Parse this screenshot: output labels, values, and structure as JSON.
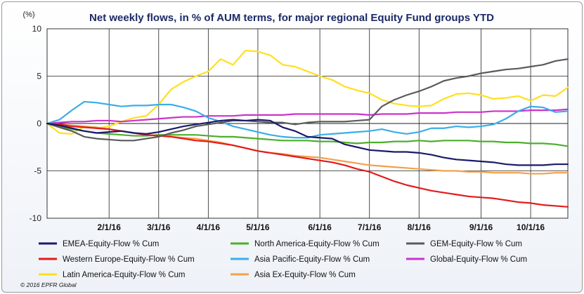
{
  "chart_data": {
    "type": "line",
    "title": "Net weekly flows, in % of AUM terms, for major regional Equity Fund groups YTD",
    "ylabel": "(%)",
    "xlabel": "",
    "ylim": [
      -10,
      10
    ],
    "yticks": [
      10,
      5,
      0,
      -5,
      -10
    ],
    "xlim": [
      0,
      42
    ],
    "x_tick_labels": [
      "2/1/16",
      "3/1/16",
      "4/1/16",
      "5/1/16",
      "6/1/16",
      "7/1/16",
      "8/1/16",
      "9/1/16",
      "10/1/16"
    ],
    "x_tick_positions": [
      5,
      9,
      13,
      17,
      22,
      26,
      30,
      35,
      39
    ],
    "grid": true,
    "legend_position": "bottom",
    "series": [
      {
        "name": "EMEA-Equity-Flow % Cum",
        "color": "#1a1a6b",
        "values": [
          0,
          -0.2,
          -0.5,
          -0.8,
          -1.0,
          -0.9,
          -0.8,
          -1.0,
          -1.1,
          -0.9,
          -0.6,
          -0.3,
          -0.1,
          0.1,
          0.3,
          0.4,
          0.3,
          0.4,
          0.3,
          -0.4,
          -0.8,
          -1.4,
          -1.5,
          -1.6,
          -2.2,
          -2.5,
          -2.8,
          -2.9,
          -3.0,
          -3.0,
          -3.1,
          -3.3,
          -3.6,
          -3.8,
          -3.9,
          -4.0,
          -4.1,
          -4.3,
          -4.4,
          -4.4,
          -4.4,
          -4.3,
          -4.3
        ]
      },
      {
        "name": "North America-Equity-Flow % Cum",
        "color": "#4caf2c",
        "values": [
          0,
          -0.3,
          -0.6,
          -0.8,
          -1.0,
          -1.1,
          -1.2,
          -1.3,
          -1.3,
          -1.2,
          -1.2,
          -1.2,
          -1.2,
          -1.3,
          -1.4,
          -1.4,
          -1.5,
          -1.6,
          -1.7,
          -1.8,
          -1.8,
          -1.8,
          -1.9,
          -1.9,
          -2.0,
          -2.1,
          -2.0,
          -2.0,
          -1.9,
          -1.9,
          -1.8,
          -1.9,
          -1.8,
          -1.8,
          -1.8,
          -1.9,
          -1.9,
          -2.0,
          -2.0,
          -2.1,
          -2.1,
          -2.2,
          -2.4
        ]
      },
      {
        "name": "GEM-Equity-Flow % Cum",
        "color": "#5a5a5a",
        "values": [
          0,
          -0.4,
          -0.8,
          -1.4,
          -1.6,
          -1.7,
          -1.8,
          -1.8,
          -1.6,
          -1.4,
          -1.0,
          -0.7,
          -0.3,
          -0.1,
          0.1,
          0.3,
          0.3,
          0.2,
          0.1,
          0.1,
          -0.1,
          0.1,
          0.2,
          0.2,
          0.2,
          0.3,
          0.4,
          1.8,
          2.5,
          3.0,
          3.4,
          3.9,
          4.5,
          4.8,
          5.0,
          5.3,
          5.5,
          5.7,
          5.8,
          6.0,
          6.2,
          6.6,
          6.8
        ]
      },
      {
        "name": "Western Europe-Equity-Flow % Cum",
        "color": "#e31a1c",
        "values": [
          0,
          -0.1,
          -0.3,
          -0.4,
          -0.5,
          -0.6,
          -0.8,
          -1.0,
          -1.2,
          -1.3,
          -1.4,
          -1.6,
          -1.8,
          -1.9,
          -2.1,
          -2.3,
          -2.6,
          -2.9,
          -3.1,
          -3.3,
          -3.5,
          -3.7,
          -3.9,
          -4.1,
          -4.4,
          -4.8,
          -5.1,
          -5.6,
          -6.1,
          -6.5,
          -6.8,
          -7.1,
          -7.3,
          -7.5,
          -7.7,
          -7.8,
          -7.9,
          -8.1,
          -8.3,
          -8.4,
          -8.6,
          -8.7,
          -8.8
        ]
      },
      {
        "name": "Asia Pacific-Equity-Flow % Cum",
        "color": "#3aaee8",
        "values": [
          0,
          0.4,
          1.4,
          2.3,
          2.2,
          2.0,
          1.8,
          1.9,
          1.9,
          2.0,
          2.0,
          1.7,
          1.3,
          0.6,
          0.2,
          -0.3,
          -0.6,
          -0.9,
          -1.2,
          -1.4,
          -1.5,
          -1.5,
          -1.2,
          -1.1,
          -1.0,
          -0.9,
          -0.8,
          -0.6,
          -0.9,
          -1.1,
          -0.9,
          -0.5,
          -0.5,
          -0.3,
          -0.4,
          -0.3,
          -0.1,
          0.5,
          1.3,
          1.8,
          1.7,
          1.2,
          1.3
        ]
      },
      {
        "name": "Global-Equity-Flow % Cum",
        "color": "#cc33cc",
        "values": [
          0,
          0.1,
          0.2,
          0.2,
          0.3,
          0.3,
          0.2,
          0.3,
          0.4,
          0.5,
          0.6,
          0.7,
          0.7,
          0.8,
          0.8,
          0.8,
          0.9,
          0.9,
          0.9,
          0.9,
          1.0,
          1.0,
          1.0,
          1.0,
          1.0,
          1.0,
          0.9,
          1.0,
          1.0,
          1.0,
          1.1,
          1.1,
          1.1,
          1.2,
          1.2,
          1.2,
          1.3,
          1.3,
          1.3,
          1.4,
          1.4,
          1.4,
          1.5
        ]
      },
      {
        "name": "Latin America-Equity-Flow % Cum",
        "color": "#ffdf20",
        "values": [
          0,
          -1.0,
          -1.1,
          -0.3,
          -0.5,
          -0.3,
          0.2,
          0.6,
          0.8,
          2.0,
          3.6,
          4.4,
          5.0,
          5.5,
          6.8,
          6.2,
          7.7,
          7.6,
          7.2,
          6.2,
          6.0,
          5.5,
          5.0,
          4.6,
          3.9,
          3.5,
          3.2,
          2.5,
          2.1,
          1.9,
          1.8,
          1.9,
          2.6,
          3.1,
          3.2,
          3.0,
          2.6,
          2.7,
          2.9,
          2.4,
          3.0,
          2.9,
          3.8
        ]
      },
      {
        "name": "Asia Ex-Equity-Flow % Cum",
        "color": "#f3a04a",
        "values": [
          0,
          -0.1,
          -0.2,
          -0.3,
          -0.4,
          -0.6,
          -0.8,
          -1.0,
          -1.2,
          -1.3,
          -1.4,
          -1.5,
          -1.6,
          -1.8,
          -2.0,
          -2.3,
          -2.6,
          -2.9,
          -3.1,
          -3.2,
          -3.4,
          -3.5,
          -3.6,
          -3.8,
          -4.0,
          -4.2,
          -4.4,
          -4.5,
          -4.6,
          -4.7,
          -4.8,
          -4.9,
          -5.0,
          -5.0,
          -5.1,
          -5.1,
          -5.2,
          -5.2,
          -5.2,
          -5.3,
          -5.3,
          -5.2,
          -5.2
        ]
      }
    ],
    "legend_order": [
      "EMEA-Equity-Flow % Cum",
      "North America-Equity-Flow % Cum",
      "GEM-Equity-Flow % Cum",
      "Western Europe-Equity-Flow % Cum",
      "Asia Pacific-Equity-Flow % Cum",
      "Global-Equity-Flow % Cum",
      "Latin America-Equity-Flow % Cum",
      "Asia Ex-Equity-Flow % Cum"
    ],
    "copyright": "© 2016 EPFR Global"
  }
}
